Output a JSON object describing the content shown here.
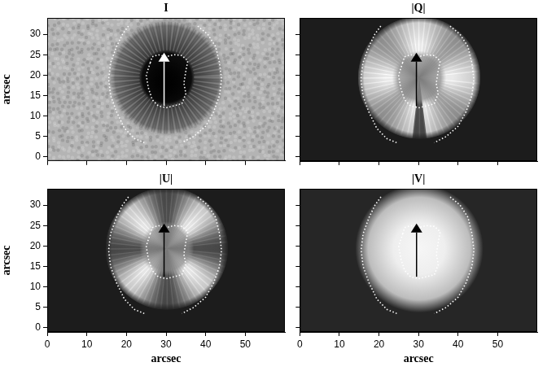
{
  "chart_data": [
    {
      "type": "image",
      "title": "I",
      "ylabel": "arcsec",
      "xlim": [
        0,
        60
      ],
      "xticks": [
        0,
        10,
        20,
        30,
        40,
        50
      ],
      "ylim": [
        -1,
        34
      ],
      "yticks": [
        0,
        5,
        10,
        15,
        20,
        25,
        30
      ],
      "tick_labels": "y",
      "series": [
        {
          "color": "#ffffff",
          "line_style": "dotted",
          "x": [
            26,
            26.5,
            28,
            30,
            32,
            34,
            35.5,
            35,
            34.5,
            35,
            34,
            32,
            30,
            28,
            26.5,
            25.5,
            25,
            26
          ],
          "values": [
            23,
            24.5,
            25,
            24.5,
            25,
            24.8,
            23.5,
            21,
            18,
            15.5,
            13,
            12.5,
            12,
            12.5,
            14,
            17,
            20,
            23
          ]
        },
        {
          "color": "#ffffff",
          "line_style": "dotted",
          "x": [
            20.5,
            19,
            17.5,
            16,
            15.5,
            16,
            17.5,
            19.5,
            22,
            24.5
          ],
          "values": [
            32,
            30,
            27,
            23,
            19,
            15,
            11,
            7,
            4.5,
            3.5
          ]
        },
        {
          "color": "#ffffff",
          "line_style": "dotted",
          "x": [
            38,
            40.5,
            42.5,
            43.5,
            44,
            43.5,
            42,
            40,
            37,
            34
          ],
          "values": [
            32,
            30,
            27,
            23,
            19,
            15,
            11,
            7.5,
            5,
            3.5
          ]
        }
      ],
      "arrow": {
        "color": "#ffffff",
        "x": [
          29.5,
          29.5
        ],
        "y": [
          12.5,
          25.5
        ]
      }
    },
    {
      "type": "image",
      "title": "|Q|",
      "xlim": [
        0,
        60
      ],
      "xticks": [
        0,
        10,
        20,
        30,
        40,
        50
      ],
      "ylim": [
        -1,
        34
      ],
      "yticks": [
        0,
        5,
        10,
        15,
        20,
        25,
        30
      ],
      "tick_labels": false,
      "series": [
        {
          "color": "#ffffff",
          "line_style": "dotted",
          "x": [
            26,
            26.5,
            28,
            30,
            32,
            34,
            35.5,
            35,
            34.5,
            35,
            34,
            32,
            30,
            28,
            26.5,
            25.5,
            25,
            26
          ],
          "values": [
            23,
            24.5,
            25,
            24.5,
            25,
            24.8,
            23.5,
            21,
            18,
            15.5,
            13,
            12.5,
            12,
            12.5,
            14,
            17,
            20,
            23
          ]
        },
        {
          "color": "#ffffff",
          "line_style": "dotted",
          "x": [
            20.5,
            19,
            17.5,
            16,
            15.5,
            16,
            17.5,
            19.5,
            22,
            24.5
          ],
          "values": [
            32,
            30,
            27,
            23,
            19,
            15,
            11,
            7,
            4.5,
            3.5
          ]
        },
        {
          "color": "#ffffff",
          "line_style": "dotted",
          "x": [
            38,
            40.5,
            42.5,
            43.5,
            44,
            43.5,
            42,
            40,
            37,
            34
          ],
          "values": [
            32,
            30,
            27,
            23,
            19,
            15,
            11,
            7.5,
            5,
            3.5
          ]
        }
      ],
      "arrow": {
        "color": "#000000",
        "x": [
          29.5,
          29.5
        ],
        "y": [
          12.5,
          25.5
        ]
      }
    },
    {
      "type": "image",
      "title": "|U|",
      "xlabel": "arcsec",
      "ylabel": "arcsec",
      "xlim": [
        0,
        60
      ],
      "xticks": [
        0,
        10,
        20,
        30,
        40,
        50
      ],
      "ylim": [
        -1,
        34
      ],
      "yticks": [
        0,
        5,
        10,
        15,
        20,
        25,
        30
      ],
      "series": [
        {
          "color": "#ffffff",
          "line_style": "dotted",
          "x": [
            26,
            26.5,
            28,
            30,
            32,
            34,
            35.5,
            35,
            34.5,
            35,
            34,
            32,
            30,
            28,
            26.5,
            25.5,
            25,
            26
          ],
          "values": [
            23,
            24.5,
            25,
            24.5,
            25,
            24.8,
            23.5,
            21,
            18,
            15.5,
            13,
            12.5,
            12,
            12.5,
            14,
            17,
            20,
            23
          ]
        },
        {
          "color": "#ffffff",
          "line_style": "dotted",
          "x": [
            20.5,
            19,
            17.5,
            16,
            15.5,
            16,
            17.5,
            19.5,
            22,
            24.5
          ],
          "values": [
            32,
            30,
            27,
            23,
            19,
            15,
            11,
            7,
            4.5,
            3.5
          ]
        },
        {
          "color": "#ffffff",
          "line_style": "dotted",
          "x": [
            38,
            40.5,
            42.5,
            43.5,
            44,
            43.5,
            42,
            40,
            37,
            34
          ],
          "values": [
            32,
            30,
            27,
            23,
            19,
            15,
            11,
            7.5,
            5,
            3.5
          ]
        }
      ],
      "arrow": {
        "color": "#000000",
        "x": [
          29.5,
          29.5
        ],
        "y": [
          12.5,
          25.5
        ]
      }
    },
    {
      "type": "image",
      "title": "|V|",
      "xlabel": "arcsec",
      "xlim": [
        0,
        60
      ],
      "xticks": [
        0,
        10,
        20,
        30,
        40,
        50
      ],
      "ylim": [
        -1,
        34
      ],
      "yticks": [
        0,
        5,
        10,
        15,
        20,
        25,
        30
      ],
      "tick_labels": "x",
      "series": [
        {
          "color": "#ffffff",
          "line_style": "dotted",
          "x": [
            26,
            26.5,
            28,
            30,
            32,
            34,
            35.5,
            35,
            34.5,
            35,
            34,
            32,
            30,
            28,
            26.5,
            25.5,
            25,
            26
          ],
          "values": [
            23,
            24.5,
            25,
            24.5,
            25,
            24.8,
            23.5,
            21,
            18,
            15.5,
            13,
            12.5,
            12,
            12.5,
            14,
            17,
            20,
            23
          ]
        },
        {
          "color": "#ffffff",
          "line_style": "dotted",
          "x": [
            20.5,
            19,
            17.5,
            16,
            15.5,
            16,
            17.5,
            19.5,
            22,
            24.5
          ],
          "values": [
            32,
            30,
            27,
            23,
            19,
            15,
            11,
            7,
            4.5,
            3.5
          ]
        },
        {
          "color": "#ffffff",
          "line_style": "dotted",
          "x": [
            38,
            40.5,
            42.5,
            43.5,
            44,
            43.5,
            42,
            40,
            37,
            34
          ],
          "values": [
            32,
            30,
            27,
            23,
            19,
            15,
            11,
            7.5,
            5,
            3.5
          ]
        }
      ],
      "arrow": {
        "color": "#000000",
        "x": [
          29.5,
          29.5
        ],
        "y": [
          12.5,
          25.5
        ]
      }
    }
  ]
}
